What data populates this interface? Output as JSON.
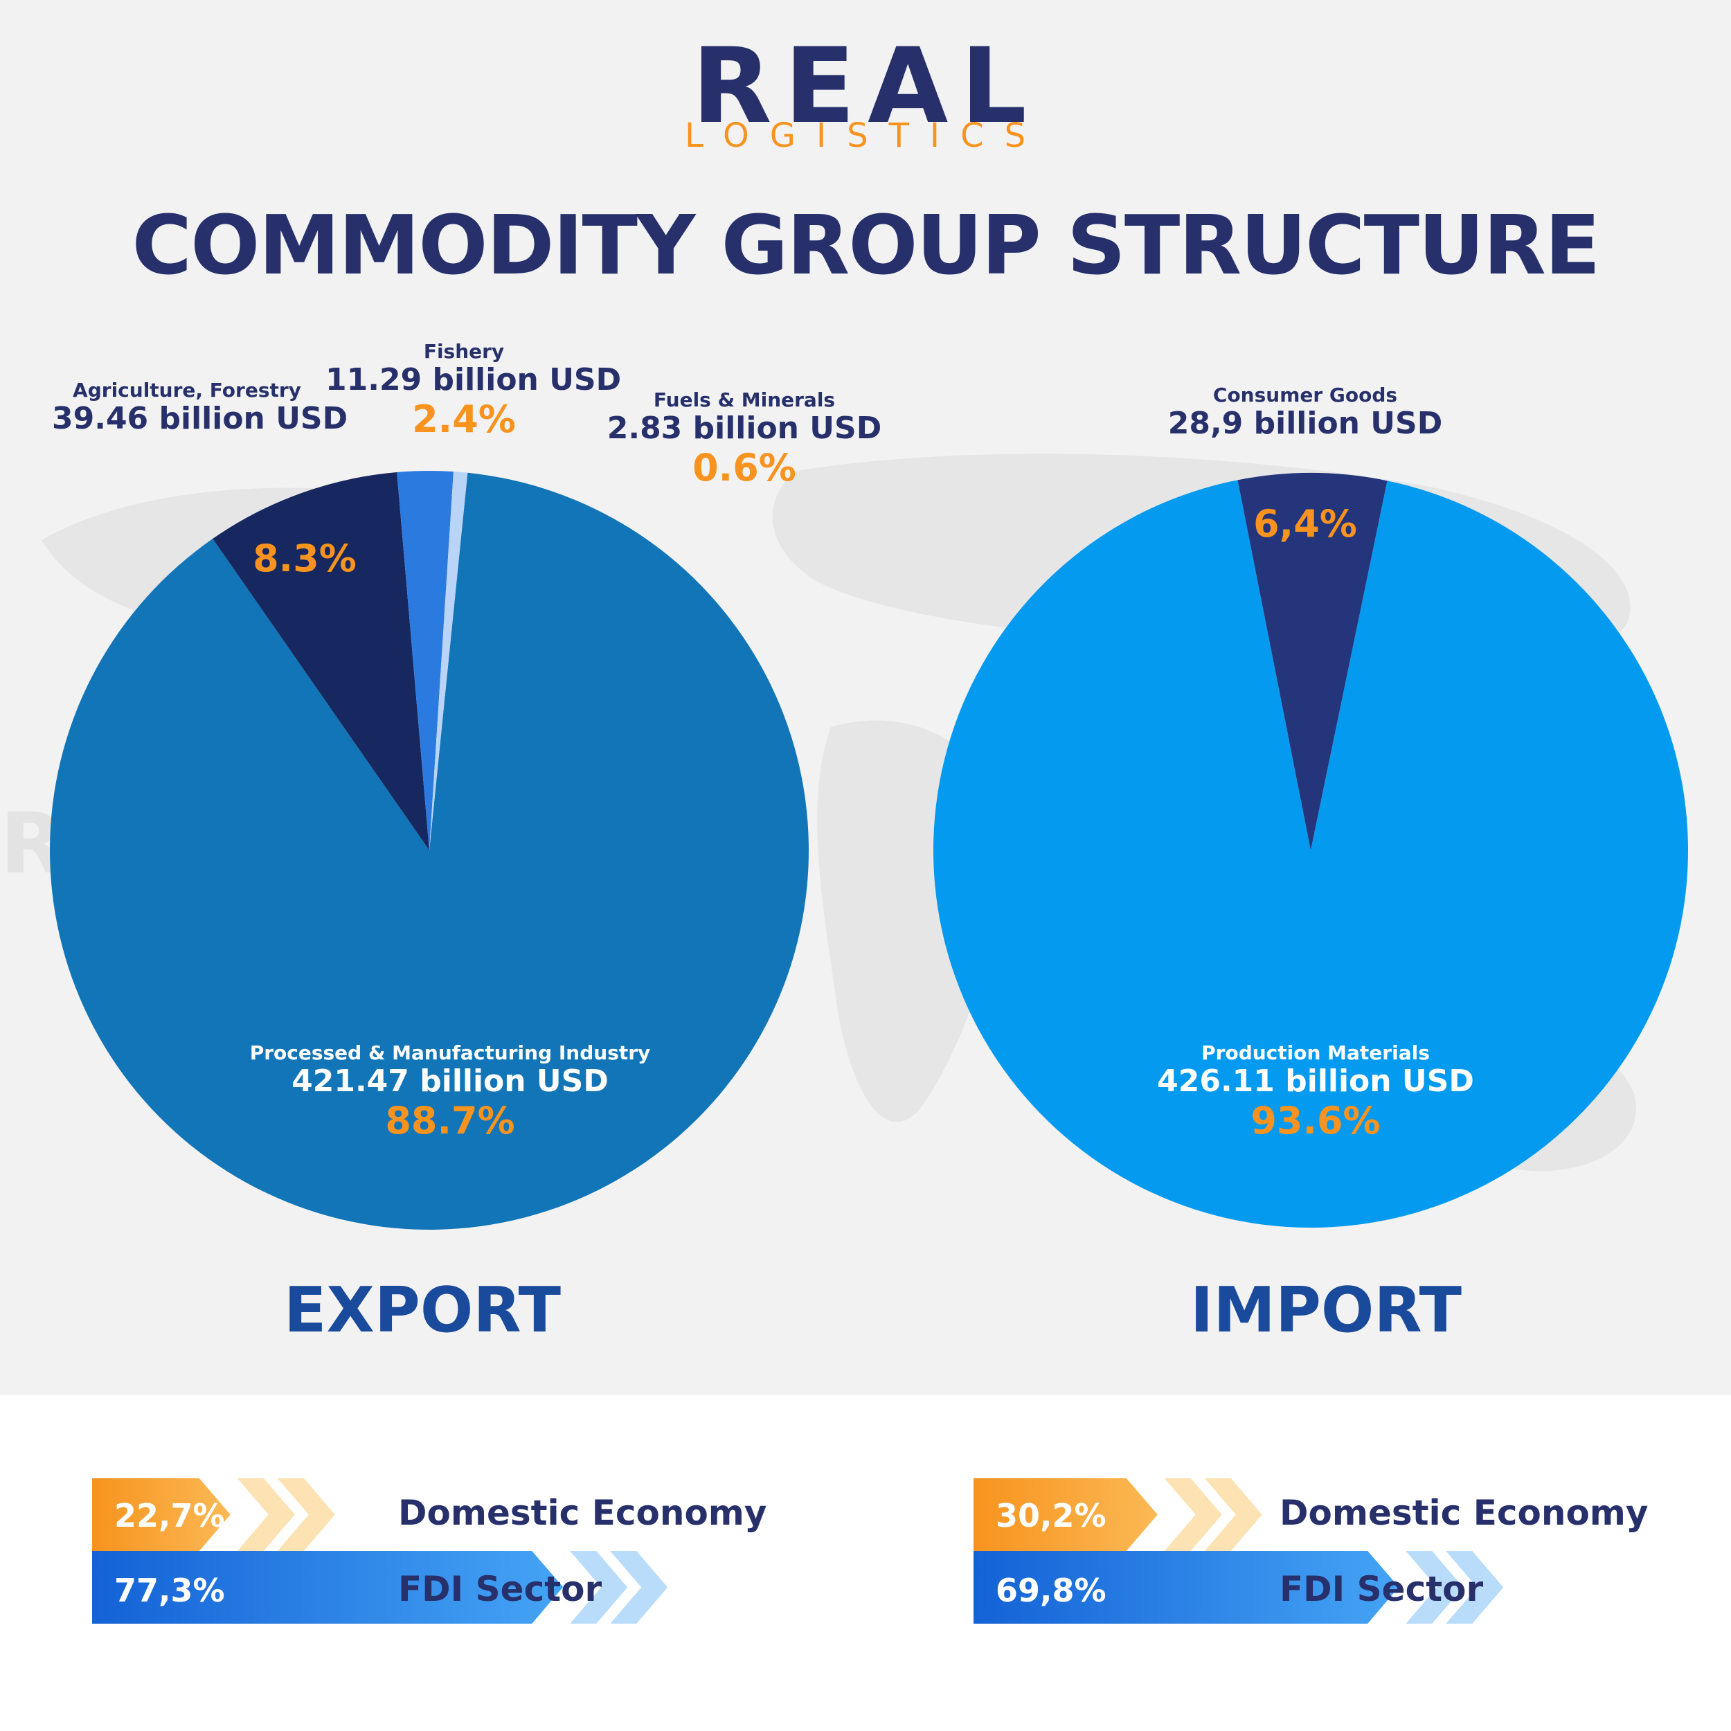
{
  "brand": {
    "name": "REAL",
    "sub": "LOGISTICS"
  },
  "title": "COMMODITY GROUP STRUCTURE",
  "colors": {
    "navy": "#27306b",
    "orange": "#f7931e",
    "export_main": "#1175b8",
    "export_agri": "#17275f",
    "export_fish": "#2b7ae0",
    "export_fuel": "#b9d4f7",
    "import_main": "#049aef",
    "import_consumer": "#24357b"
  },
  "chart_data": [
    {
      "type": "pie",
      "title": "EXPORT",
      "slices": [
        {
          "label": "Processed & Manufacturing Industry",
          "value_text": "421.47 billion USD",
          "value": 421.47,
          "percent": 88.7,
          "percent_text": "88.7%"
        },
        {
          "label": "Agriculture, Forestry",
          "value_text": "39.46 billion USD",
          "value": 39.46,
          "percent": 8.3,
          "percent_text": "8.3%"
        },
        {
          "label": "Fishery",
          "value_text": "11.29 billion USD",
          "value": 11.29,
          "percent": 2.4,
          "percent_text": "2.4%"
        },
        {
          "label": "Fuels & Minerals",
          "value_text": "2.83 billion USD",
          "value": 2.83,
          "percent": 0.6,
          "percent_text": "0.6%"
        }
      ]
    },
    {
      "type": "pie",
      "title": "IMPORT",
      "slices": [
        {
          "label": "Production Materials",
          "value_text": "426.11 billion USD",
          "value": 426.11,
          "percent": 93.6,
          "percent_text": "93.6%"
        },
        {
          "label": "Consumer Goods",
          "value_text": "28,9 billion USD",
          "value": 28.9,
          "percent": 6.4,
          "percent_text": "6,4%"
        }
      ]
    }
  ],
  "sectors": {
    "export": {
      "domestic": {
        "percent": 22.7,
        "percent_text": "22,7%",
        "label": "Domestic Economy"
      },
      "fdi": {
        "percent": 77.3,
        "percent_text": "77,3%",
        "label": "FDI Sector"
      }
    },
    "import": {
      "domestic": {
        "percent": 30.2,
        "percent_text": "30,2%",
        "label": "Domestic Economy"
      },
      "fdi": {
        "percent": 69.8,
        "percent_text": "69,8%",
        "label": "FDI Sector"
      }
    }
  }
}
